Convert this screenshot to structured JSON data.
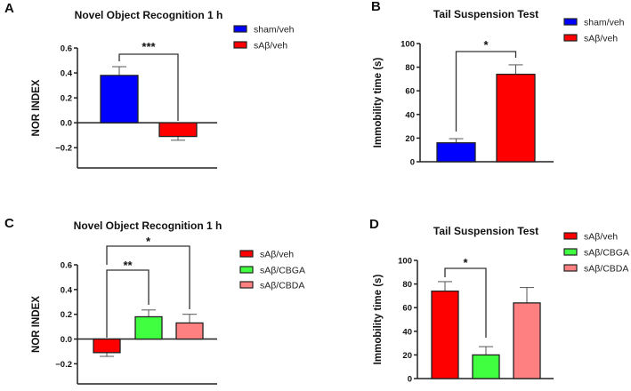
{
  "chart_data": [
    {
      "panel": "A",
      "type": "bar",
      "title": "Novel Object Recognition 1 h",
      "ylabel": "NOR INDEX",
      "ylim": [
        -0.3,
        0.6
      ],
      "yticks": [
        "0.6",
        "0.4",
        "0.2",
        "0.0",
        "−0.2"
      ],
      "ytick_values": [
        0.6,
        0.4,
        0.2,
        0.0,
        -0.2
      ],
      "categories": [
        "sham/veh",
        "sAβ/veh"
      ],
      "values": [
        0.38,
        -0.11
      ],
      "errors": [
        0.07,
        0.03
      ],
      "colors": [
        "#0000ff",
        "#ff0000"
      ],
      "legend": [
        "sham/veh",
        "sAβ/veh"
      ],
      "legend_position": "top-right",
      "significance": [
        {
          "from": 0,
          "to": 1,
          "label": "***"
        }
      ]
    },
    {
      "panel": "B",
      "type": "bar",
      "title": "Tail Suspension Test",
      "ylabel": "Immobility time (s)",
      "ylim": [
        0,
        100
      ],
      "yticks": [
        "100",
        "80",
        "60",
        "40",
        "20",
        "0"
      ],
      "ytick_values": [
        100,
        80,
        60,
        40,
        20,
        0
      ],
      "categories": [
        "sham/veh",
        "sAβ/veh"
      ],
      "values": [
        16,
        74
      ],
      "errors": [
        3.5,
        8
      ],
      "colors": [
        "#0000ff",
        "#ff0000"
      ],
      "legend": [
        "sham/veh",
        "sAβ/veh"
      ],
      "legend_position": "top-right",
      "significance": [
        {
          "from": 0,
          "to": 1,
          "label": "*"
        }
      ]
    },
    {
      "panel": "C",
      "type": "bar",
      "title": "Novel Object Recognition 1 h",
      "ylabel": "NOR INDEX",
      "ylim": [
        -0.3,
        0.6
      ],
      "yticks": [
        "0.6",
        "0.4",
        "0.2",
        "0.0",
        "−0.2"
      ],
      "ytick_values": [
        0.6,
        0.4,
        0.2,
        0.0,
        -0.2
      ],
      "categories": [
        "sAβ/veh",
        "sAβ/CBGA",
        "sAβ/CBDA"
      ],
      "values": [
        -0.11,
        0.18,
        0.13
      ],
      "errors": [
        0.03,
        0.055,
        0.07
      ],
      "colors": [
        "#ff0000",
        "#40ff40",
        "#ff8080"
      ],
      "legend": [
        "sAβ/veh",
        "sAβ/CBGA",
        "sAβ/CBDA"
      ],
      "legend_position": "right",
      "significance": [
        {
          "from": 0,
          "to": 1,
          "label": "**"
        },
        {
          "from": 0,
          "to": 2,
          "label": "*"
        }
      ]
    },
    {
      "panel": "D",
      "type": "bar",
      "title": "Tail Suspension Test",
      "ylabel": "Immobility time (s)",
      "ylim": [
        0,
        100
      ],
      "yticks": [
        "100",
        "80",
        "60",
        "40",
        "20",
        "0"
      ],
      "ytick_values": [
        100,
        80,
        60,
        40,
        20,
        0
      ],
      "categories": [
        "sAβ/veh",
        "sAβ/CBGA",
        "sAβ/CBDA"
      ],
      "values": [
        74,
        20,
        64
      ],
      "errors": [
        8,
        7,
        13
      ],
      "colors": [
        "#ff0000",
        "#40ff40",
        "#ff8080"
      ],
      "legend": [
        "sAβ/veh",
        "sAβ/CBGA",
        "sAβ/CBDA"
      ],
      "legend_position": "top-right",
      "significance": [
        {
          "from": 0,
          "to": 1,
          "label": "*"
        }
      ]
    }
  ]
}
